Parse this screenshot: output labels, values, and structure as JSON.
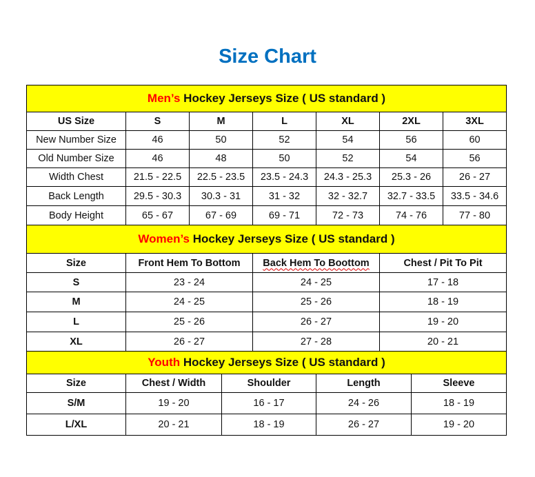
{
  "title": "Size Chart",
  "colors": {
    "title": "#0070c0",
    "header_bg": "#ffff00",
    "highlight": "#ff0000"
  },
  "mens": {
    "header_highlight": "Men’s",
    "header_rest": " Hockey Jerseys Size ( US standard )",
    "columns": [
      "US Size",
      "S",
      "M",
      "L",
      "XL",
      "2XL",
      "3XL"
    ],
    "rows": [
      [
        "New Number Size",
        "46",
        "50",
        "52",
        "54",
        "56",
        "60"
      ],
      [
        "Old Number Size",
        "46",
        "48",
        "50",
        "52",
        "54",
        "56"
      ],
      [
        "Width Chest",
        "21.5 - 22.5",
        "22.5 - 23.5",
        "23.5 - 24.3",
        "24.3 - 25.3",
        "25.3 - 26",
        "26 - 27"
      ],
      [
        "Back Length",
        "29.5 - 30.3",
        "30.3 - 31",
        "31 - 32",
        "32 - 32.7",
        "32.7 - 33.5",
        "33.5 - 34.6"
      ],
      [
        "Body Height",
        "65 - 67",
        "67 - 69",
        "69 - 71",
        "72 - 73",
        "74 - 76",
        "77 - 80"
      ]
    ]
  },
  "womens": {
    "header_highlight": "Women’s",
    "header_rest": " Hockey Jerseys Size ( US standard )",
    "columns": [
      "Size",
      "Front Hem To Bottom",
      "Back Hem To Boottom",
      "Chest / Pit To Pit"
    ],
    "rows": [
      [
        "S",
        "23 - 24",
        "24 - 25",
        "17 - 18"
      ],
      [
        "M",
        "24 - 25",
        "25 - 26",
        "18 - 19"
      ],
      [
        "L",
        "25 - 26",
        "26 - 27",
        "19 - 20"
      ],
      [
        "XL",
        "26 - 27",
        "27 - 28",
        "20 - 21"
      ]
    ]
  },
  "youth": {
    "header_highlight": "Youth",
    "header_rest": " Hockey Jerseys Size ( US standard )",
    "columns": [
      "Size",
      "Chest / Width",
      "Shoulder",
      "Length",
      "Sleeve"
    ],
    "rows": [
      [
        "S/M",
        "19 - 20",
        "16 - 17",
        "24 - 26",
        "18 - 19"
      ],
      [
        "L/XL",
        "20 - 21",
        "18 - 19",
        "26 - 27",
        "19 - 20"
      ]
    ]
  }
}
